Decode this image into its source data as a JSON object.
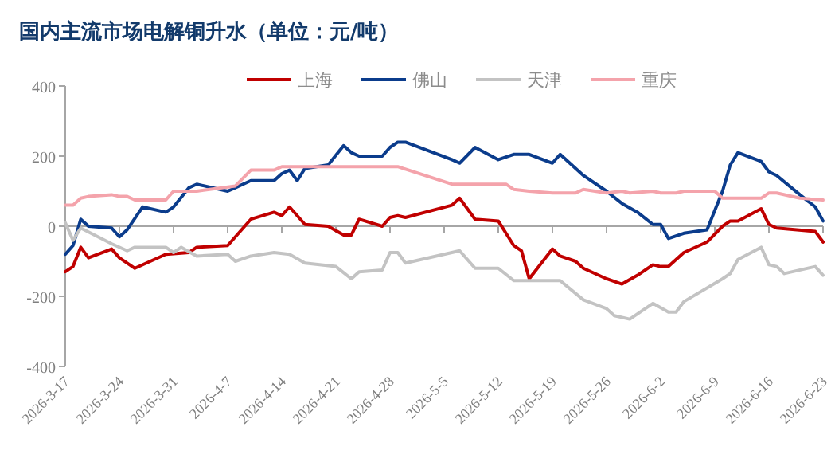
{
  "chart_data": {
    "type": "line",
    "title": "国内主流市场电解铜升水（单位：元/吨）",
    "legend": "top",
    "marker": "none",
    "line_style": "solid",
    "ylim": [
      -400,
      400
    ],
    "yticks": [
      -400,
      -200,
      0,
      200,
      400
    ],
    "xlim": [
      "2026-03-17",
      "2026-06-23"
    ],
    "xticks": [
      {
        "value": "2026-03-17",
        "label": "2026-3-17"
      },
      {
        "value": "2026-03-24",
        "label": "2026-3-24"
      },
      {
        "value": "2026-03-31",
        "label": "2026-3-31"
      },
      {
        "value": "2026-04-07",
        "label": "2026-4-7"
      },
      {
        "value": "2026-04-14",
        "label": "2026-4-14"
      },
      {
        "value": "2026-04-21",
        "label": "2026-4-21"
      },
      {
        "value": "2026-04-28",
        "label": "2026-4-28"
      },
      {
        "value": "2026-05-05",
        "label": "2026-5-5"
      },
      {
        "value": "2026-05-12",
        "label": "2026-5-12"
      },
      {
        "value": "2026-05-19",
        "label": "2026-5-19"
      },
      {
        "value": "2026-05-26",
        "label": "2026-5-26"
      },
      {
        "value": "2026-06-02",
        "label": "2026-6-2"
      },
      {
        "value": "2026-06-09",
        "label": "2026-6-9"
      },
      {
        "value": "2026-06-16",
        "label": "2026-6-16"
      },
      {
        "value": "2026-06-23",
        "label": "2026-6-23"
      }
    ],
    "series": [
      {
        "name": "上海",
        "color": "#c00000",
        "x": [
          "2026-03-17",
          "2026-03-18",
          "2026-03-19",
          "2026-03-20",
          "2026-03-23",
          "2026-03-24",
          "2026-03-26",
          "2026-03-30",
          "2026-04-02",
          "2026-04-03",
          "2026-04-07",
          "2026-04-10",
          "2026-04-13",
          "2026-04-14",
          "2026-04-15",
          "2026-04-17",
          "2026-04-20",
          "2026-04-22",
          "2026-04-23",
          "2026-04-24",
          "2026-04-27",
          "2026-04-28",
          "2026-04-29",
          "2026-04-30",
          "2026-05-06",
          "2026-05-07",
          "2026-05-09",
          "2026-05-12",
          "2026-05-14",
          "2026-05-15",
          "2026-05-16",
          "2026-05-19",
          "2026-05-20",
          "2026-05-22",
          "2026-05-23",
          "2026-05-26",
          "2026-05-28",
          "2026-05-30",
          "2026-06-01",
          "2026-06-02",
          "2026-06-03",
          "2026-06-05",
          "2026-06-08",
          "2026-06-10",
          "2026-06-11",
          "2026-06-12",
          "2026-06-15",
          "2026-06-16",
          "2026-06-17",
          "2026-06-22",
          "2026-06-23"
        ],
        "values": [
          -130,
          -115,
          -60,
          -90,
          -65,
          -90,
          -120,
          -80,
          -75,
          -60,
          -55,
          20,
          40,
          30,
          55,
          5,
          0,
          -25,
          -25,
          20,
          0,
          25,
          30,
          25,
          60,
          80,
          20,
          15,
          -55,
          -70,
          -150,
          -65,
          -85,
          -100,
          -120,
          -150,
          -165,
          -140,
          -110,
          -115,
          -115,
          -75,
          -45,
          0,
          15,
          15,
          50,
          5,
          -5,
          -15,
          -45
        ]
      },
      {
        "name": "佛山",
        "color": "#0b3c8c",
        "x": [
          "2026-03-17",
          "2026-03-18",
          "2026-03-19",
          "2026-03-20",
          "2026-03-23",
          "2026-03-24",
          "2026-03-25",
          "2026-03-27",
          "2026-03-30",
          "2026-03-31",
          "2026-04-02",
          "2026-04-03",
          "2026-04-07",
          "2026-04-08",
          "2026-04-10",
          "2026-04-13",
          "2026-04-14",
          "2026-04-15",
          "2026-04-16",
          "2026-04-17",
          "2026-04-20",
          "2026-04-22",
          "2026-04-23",
          "2026-04-24",
          "2026-04-27",
          "2026-04-28",
          "2026-04-29",
          "2026-04-30",
          "2026-05-06",
          "2026-05-07",
          "2026-05-09",
          "2026-05-12",
          "2026-05-14",
          "2026-05-16",
          "2026-05-19",
          "2026-05-20",
          "2026-05-23",
          "2026-05-26",
          "2026-05-28",
          "2026-05-30",
          "2026-06-01",
          "2026-06-02",
          "2026-06-03",
          "2026-06-05",
          "2026-06-08",
          "2026-06-10",
          "2026-06-11",
          "2026-06-12",
          "2026-06-15",
          "2026-06-16",
          "2026-06-17",
          "2026-06-20",
          "2026-06-22",
          "2026-06-23"
        ],
        "values": [
          -80,
          -55,
          20,
          0,
          -5,
          -30,
          -10,
          55,
          40,
          55,
          110,
          120,
          100,
          110,
          130,
          130,
          150,
          160,
          130,
          165,
          175,
          230,
          210,
          200,
          200,
          225,
          240,
          240,
          190,
          180,
          225,
          190,
          205,
          205,
          180,
          205,
          145,
          100,
          65,
          40,
          5,
          5,
          -35,
          -20,
          -10,
          100,
          175,
          210,
          185,
          155,
          145,
          90,
          55,
          15
        ]
      },
      {
        "name": "天津",
        "color": "#c3c3c3",
        "x": [
          "2026-03-17",
          "2026-03-18",
          "2026-03-19",
          "2026-03-23",
          "2026-03-25",
          "2026-03-26",
          "2026-03-30",
          "2026-03-31",
          "2026-04-01",
          "2026-04-03",
          "2026-04-07",
          "2026-04-08",
          "2026-04-10",
          "2026-04-13",
          "2026-04-15",
          "2026-04-17",
          "2026-04-21",
          "2026-04-23",
          "2026-04-24",
          "2026-04-27",
          "2026-04-28",
          "2026-04-29",
          "2026-04-30",
          "2026-05-06",
          "2026-05-07",
          "2026-05-09",
          "2026-05-12",
          "2026-05-14",
          "2026-05-20",
          "2026-05-23",
          "2026-05-26",
          "2026-05-27",
          "2026-05-29",
          "2026-06-01",
          "2026-06-03",
          "2026-06-04",
          "2026-06-05",
          "2026-06-10",
          "2026-06-11",
          "2026-06-12",
          "2026-06-15",
          "2026-06-16",
          "2026-06-17",
          "2026-06-18",
          "2026-06-22",
          "2026-06-23"
        ],
        "values": [
          10,
          -40,
          -5,
          -50,
          -70,
          -60,
          -60,
          -75,
          -60,
          -85,
          -80,
          -100,
          -85,
          -75,
          -80,
          -105,
          -115,
          -150,
          -130,
          -125,
          -75,
          -75,
          -105,
          -75,
          -70,
          -120,
          -120,
          -155,
          -155,
          -210,
          -235,
          -255,
          -265,
          -220,
          -245,
          -245,
          -215,
          -150,
          -135,
          -95,
          -60,
          -110,
          -115,
          -135,
          -115,
          -140
        ]
      },
      {
        "name": "重庆",
        "color": "#f4a3ab",
        "x": [
          "2026-03-17",
          "2026-03-18",
          "2026-03-19",
          "2026-03-20",
          "2026-03-23",
          "2026-03-24",
          "2026-03-25",
          "2026-03-26",
          "2026-03-30",
          "2026-03-31",
          "2026-04-03",
          "2026-04-08",
          "2026-04-10",
          "2026-04-13",
          "2026-04-14",
          "2026-04-29",
          "2026-05-06",
          "2026-05-07",
          "2026-05-13",
          "2026-05-14",
          "2026-05-16",
          "2026-05-19",
          "2026-05-22",
          "2026-05-23",
          "2026-05-26",
          "2026-05-28",
          "2026-05-29",
          "2026-06-01",
          "2026-06-02",
          "2026-06-04",
          "2026-06-05",
          "2026-06-09",
          "2026-06-10",
          "2026-06-15",
          "2026-06-16",
          "2026-06-17",
          "2026-06-20",
          "2026-06-23"
        ],
        "values": [
          60,
          60,
          80,
          85,
          90,
          85,
          85,
          75,
          75,
          100,
          100,
          115,
          160,
          160,
          170,
          170,
          120,
          120,
          120,
          105,
          100,
          95,
          95,
          105,
          95,
          100,
          95,
          100,
          95,
          95,
          100,
          100,
          80,
          80,
          95,
          95,
          80,
          75
        ]
      }
    ]
  }
}
